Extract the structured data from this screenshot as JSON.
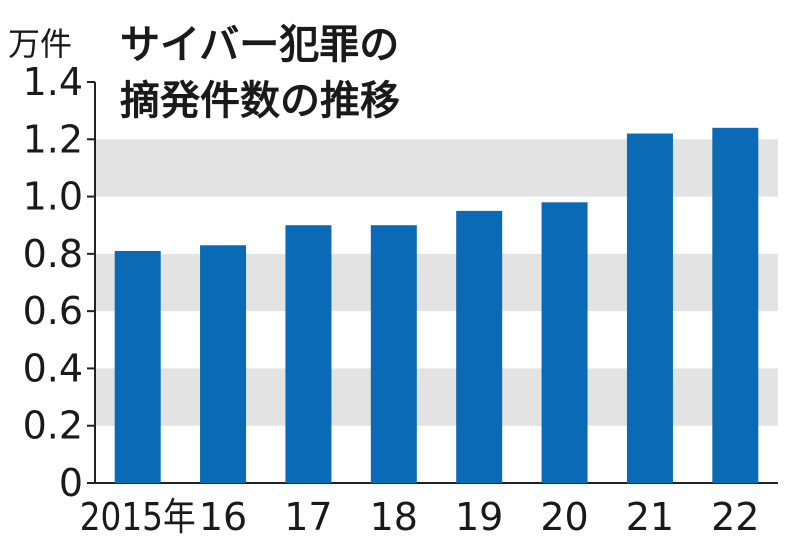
{
  "chart_data": {
    "type": "bar",
    "title_lines": [
      "サイバー犯罪の",
      "摘発件数の推移"
    ],
    "unit_label": "万件",
    "categories": [
      "2015年",
      "16",
      "17",
      "18",
      "19",
      "20",
      "21",
      "22"
    ],
    "values": [
      0.81,
      0.83,
      0.9,
      0.9,
      0.95,
      0.98,
      1.22,
      1.24
    ],
    "yticks": [
      "0",
      "0.2",
      "0.4",
      "0.6",
      "0.8",
      "1.0",
      "1.2",
      "1.4"
    ],
    "ylim": [
      0,
      1.4
    ],
    "bar_color": "#0a6ab5",
    "band_color": "#e3e3e4",
    "legend": "none"
  }
}
